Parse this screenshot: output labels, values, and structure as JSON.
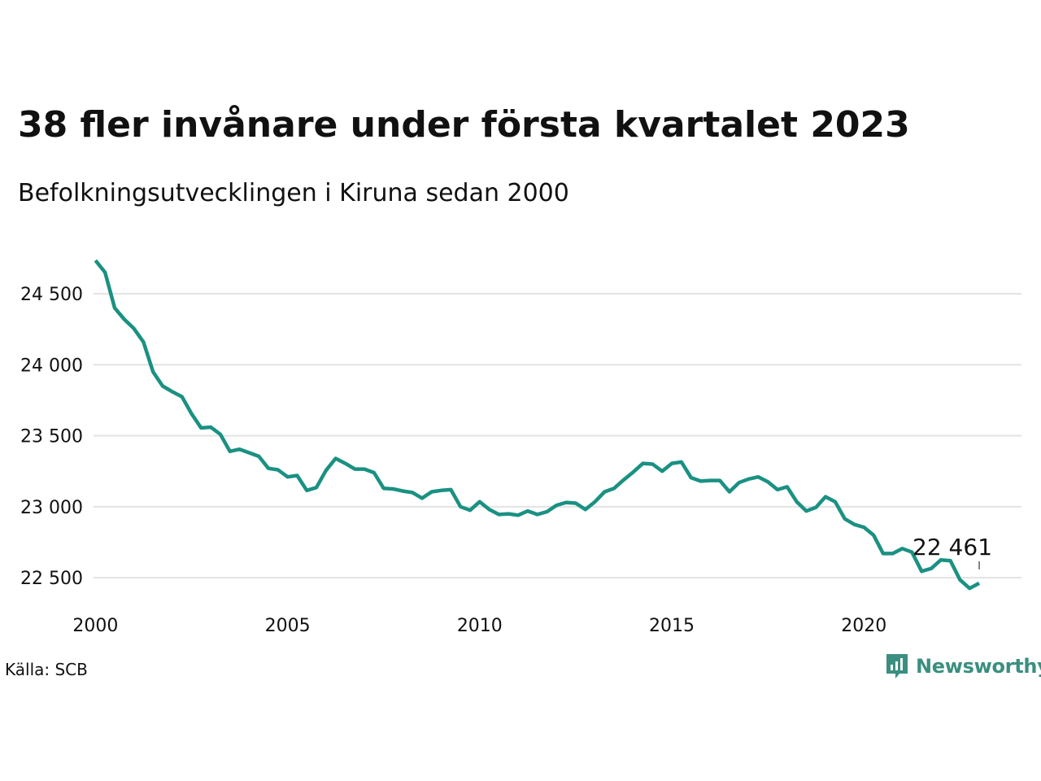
{
  "title": "38 fler invånare under första kvartalet 2023",
  "subtitle": "Befolkningsutvecklingen i Kiruna sedan 2000",
  "source": "Källa: SCB",
  "brand": {
    "name": "Newsworthy",
    "icon": "newsworthy-logo-icon"
  },
  "colors": {
    "line": "#1a9182",
    "brand": "#3a8f80",
    "grid": "#e3e3e3",
    "text": "#111111"
  },
  "chart_data": {
    "type": "line",
    "title": "38 fler invånare under första kvartalet 2023",
    "subtitle": "Befolkningsutvecklingen i Kiruna sedan 2000",
    "xlabel": "",
    "ylabel": "",
    "xlim": [
      1999.95,
      2024.1
    ],
    "ylim": [
      22300,
      24850
    ],
    "grid": "horizontal",
    "x_ticks": [
      2000,
      2005,
      2010,
      2015,
      2020
    ],
    "y_ticks": [
      22500,
      23000,
      23500,
      24000,
      24500
    ],
    "y_tick_labels": [
      "22 500",
      "23 000",
      "23 500",
      "24 000",
      "24 500"
    ],
    "last_label": "22 461",
    "x": [
      2000.0,
      2000.25,
      2000.5,
      2000.75,
      2001.0,
      2001.25,
      2001.5,
      2001.75,
      2002.0,
      2002.25,
      2002.5,
      2002.75,
      2003.0,
      2003.25,
      2003.5,
      2003.75,
      2004.0,
      2004.25,
      2004.5,
      2004.75,
      2005.0,
      2005.25,
      2005.5,
      2005.75,
      2006.0,
      2006.25,
      2006.5,
      2006.75,
      2007.0,
      2007.25,
      2007.5,
      2007.75,
      2008.0,
      2008.25,
      2008.5,
      2008.75,
      2009.0,
      2009.25,
      2009.5,
      2009.75,
      2010.0,
      2010.25,
      2010.5,
      2010.75,
      2011.0,
      2011.25,
      2011.5,
      2011.75,
      2012.0,
      2012.25,
      2012.5,
      2012.75,
      2013.0,
      2013.25,
      2013.5,
      2013.75,
      2014.0,
      2014.25,
      2014.5,
      2014.75,
      2015.0,
      2015.25,
      2015.5,
      2015.75,
      2016.0,
      2016.25,
      2016.5,
      2016.75,
      2017.0,
      2017.25,
      2017.5,
      2017.75,
      2018.0,
      2018.25,
      2018.5,
      2018.75,
      2019.0,
      2019.25,
      2019.5,
      2019.75,
      2020.0,
      2020.25,
      2020.5,
      2020.75,
      2021.0,
      2021.25,
      2021.5,
      2021.75,
      2022.0,
      2022.25,
      2022.5,
      2022.75,
      2023.0
    ],
    "series": [
      {
        "values": [
          24735,
          24650,
          24400,
          24320,
          24255,
          24160,
          23950,
          23850,
          23810,
          23775,
          23655,
          23555,
          23560,
          23510,
          23390,
          23405,
          23380,
          23355,
          23270,
          23260,
          23210,
          23220,
          23115,
          23135,
          23255,
          23340,
          23305,
          23265,
          23265,
          23240,
          23130,
          23125,
          23110,
          23100,
          23060,
          23105,
          23115,
          23120,
          23000,
          22975,
          23035,
          22980,
          22945,
          22950,
          22940,
          22970,
          22945,
          22965,
          23010,
          23030,
          23025,
          22980,
          23035,
          23105,
          23130,
          23190,
          23245,
          23305,
          23300,
          23250,
          23305,
          23315,
          23205,
          23180,
          23185,
          23185,
          23105,
          23170,
          23195,
          23210,
          23175,
          23120,
          23140,
          23035,
          22970,
          22995,
          23070,
          23035,
          22915,
          22875,
          22855,
          22800,
          22670,
          22670,
          22705,
          22680,
          22545,
          22565,
          22625,
          22620,
          22485,
          22425,
          22461
        ]
      }
    ]
  }
}
